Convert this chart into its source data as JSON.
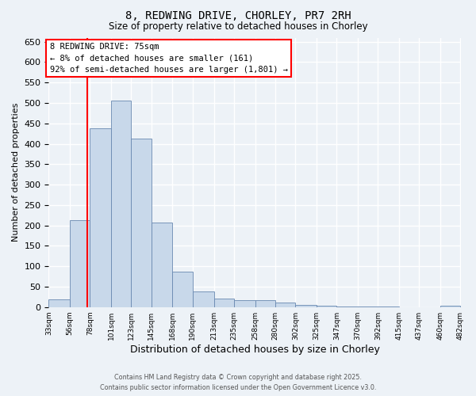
{
  "title_line1": "8, REDWING DRIVE, CHORLEY, PR7 2RH",
  "title_line2": "Size of property relative to detached houses in Chorley",
  "xlabel": "Distribution of detached houses by size in Chorley",
  "ylabel": "Number of detached properties",
  "bar_edges": [
    33,
    56,
    78,
    101,
    123,
    145,
    168,
    190,
    213,
    235,
    258,
    280,
    302,
    325,
    347,
    370,
    392,
    415,
    437,
    460,
    482
  ],
  "bar_heights": [
    18,
    213,
    437,
    505,
    413,
    207,
    86,
    39,
    20,
    17,
    16,
    12,
    5,
    4,
    2,
    2,
    1,
    0,
    0,
    4
  ],
  "bar_color": "#c8d8ea",
  "bar_edge_color": "#6888b0",
  "ylim": [
    0,
    660
  ],
  "yticks": [
    0,
    50,
    100,
    150,
    200,
    250,
    300,
    350,
    400,
    450,
    500,
    550,
    600,
    650
  ],
  "property_size": 75,
  "red_line_x": 75,
  "annotation_title": "8 REDWING DRIVE: 75sqm",
  "annotation_line2": "← 8% of detached houses are smaller (161)",
  "annotation_line3": "92% of semi-detached houses are larger (1,801) →",
  "footer_line1": "Contains HM Land Registry data © Crown copyright and database right 2025.",
  "footer_line2": "Contains public sector information licensed under the Open Government Licence v3.0.",
  "bg_color": "#edf2f7",
  "plot_bg_color": "#edf2f7",
  "grid_color": "#ffffff",
  "xtick_labels": [
    "33sqm",
    "56sqm",
    "78sqm",
    "101sqm",
    "123sqm",
    "145sqm",
    "168sqm",
    "190sqm",
    "213sqm",
    "235sqm",
    "258sqm",
    "280sqm",
    "302sqm",
    "325sqm",
    "347sqm",
    "370sqm",
    "392sqm",
    "415sqm",
    "437sqm",
    "460sqm",
    "482sqm"
  ]
}
